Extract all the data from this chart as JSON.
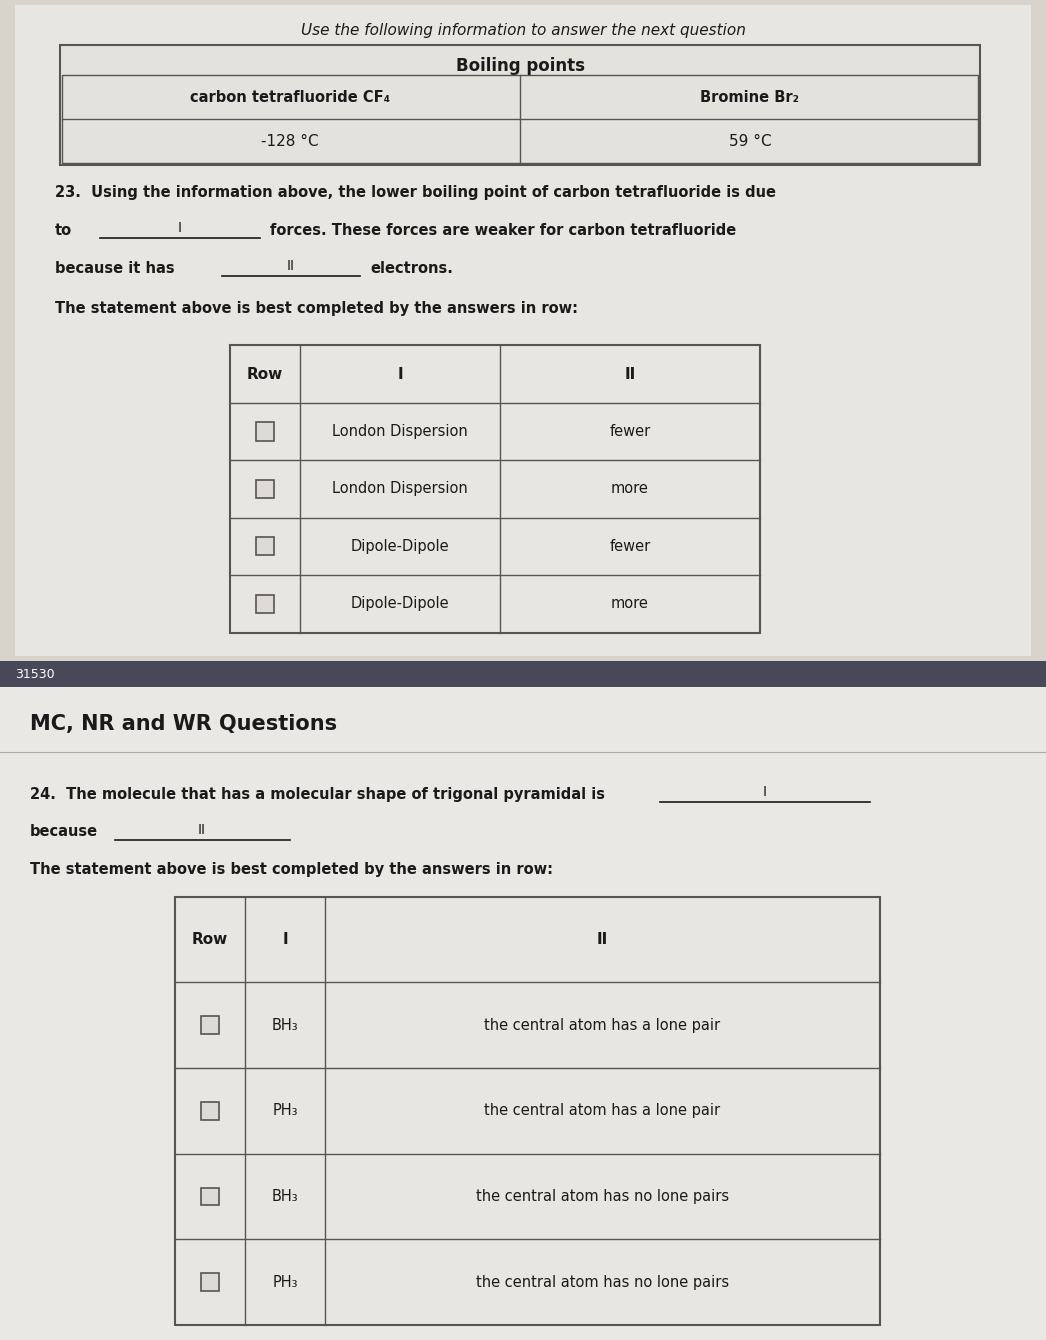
{
  "bg_page_top": "#d8d4cc",
  "bg_page_bot": "#d4d0c8",
  "bg_inner_top": "#e8e6e0",
  "bg_inner_bot": "#eae8e2",
  "bg_bar": "#484858",
  "bar_text": "31530",
  "header_italic": "Use the following information to answer the next question",
  "boiling_title": "Boiling points",
  "table1_col1_header": "carbon tetrafluoride CF₄",
  "table1_col2_header": "Bromine Br₂",
  "table1_col1_val": "-128 °C",
  "table1_col2_val": "59 °C",
  "q23_num": "23.",
  "q23_line1_a": "Using the information above, the lower boiling point of carbon tetrafluoride is due",
  "q23_line2_a": "to",
  "q23_line2_blank1": "I",
  "q23_line2_b": "forces. These forces are weaker for carbon tetrafluoride",
  "q23_line3_a": "because it has",
  "q23_line3_blank2": "II",
  "q23_line3_b": "electrons.",
  "q23_statement": "The statement above is best completed by the answers in row:",
  "q23_table_headers": [
    "Row",
    "I",
    "II"
  ],
  "q23_rows": [
    [
      "London Dispersion",
      "fewer"
    ],
    [
      "London Dispersion",
      "more"
    ],
    [
      "Dipole-Dipole",
      "fewer"
    ],
    [
      "Dipole-Dipole",
      "more"
    ]
  ],
  "q24_section": "MC, NR and WR Questions",
  "q24_num": "24.",
  "q24_line1_a": "The molecule that has a molecular shape of trigonal pyramidal is",
  "q24_line1_blank1": "I",
  "q24_line2_a": "because",
  "q24_line2_blank2": "II",
  "q24_statement": "The statement above is best completed by the answers in row:",
  "q24_table_headers": [
    "Row",
    "I",
    "II"
  ],
  "q24_rows": [
    [
      "BH₃",
      "the central atom has a lone pair"
    ],
    [
      "PH₃",
      "the central atom has a lone pair"
    ],
    [
      "BH₃",
      "the central atom has no lone pairs"
    ],
    [
      "PH₃",
      "the central atom has no lone pairs"
    ]
  ],
  "table_bg": "#e8e6e2",
  "text_color": "#1a1a1a",
  "line_color": "#666666",
  "border_color": "#555555"
}
